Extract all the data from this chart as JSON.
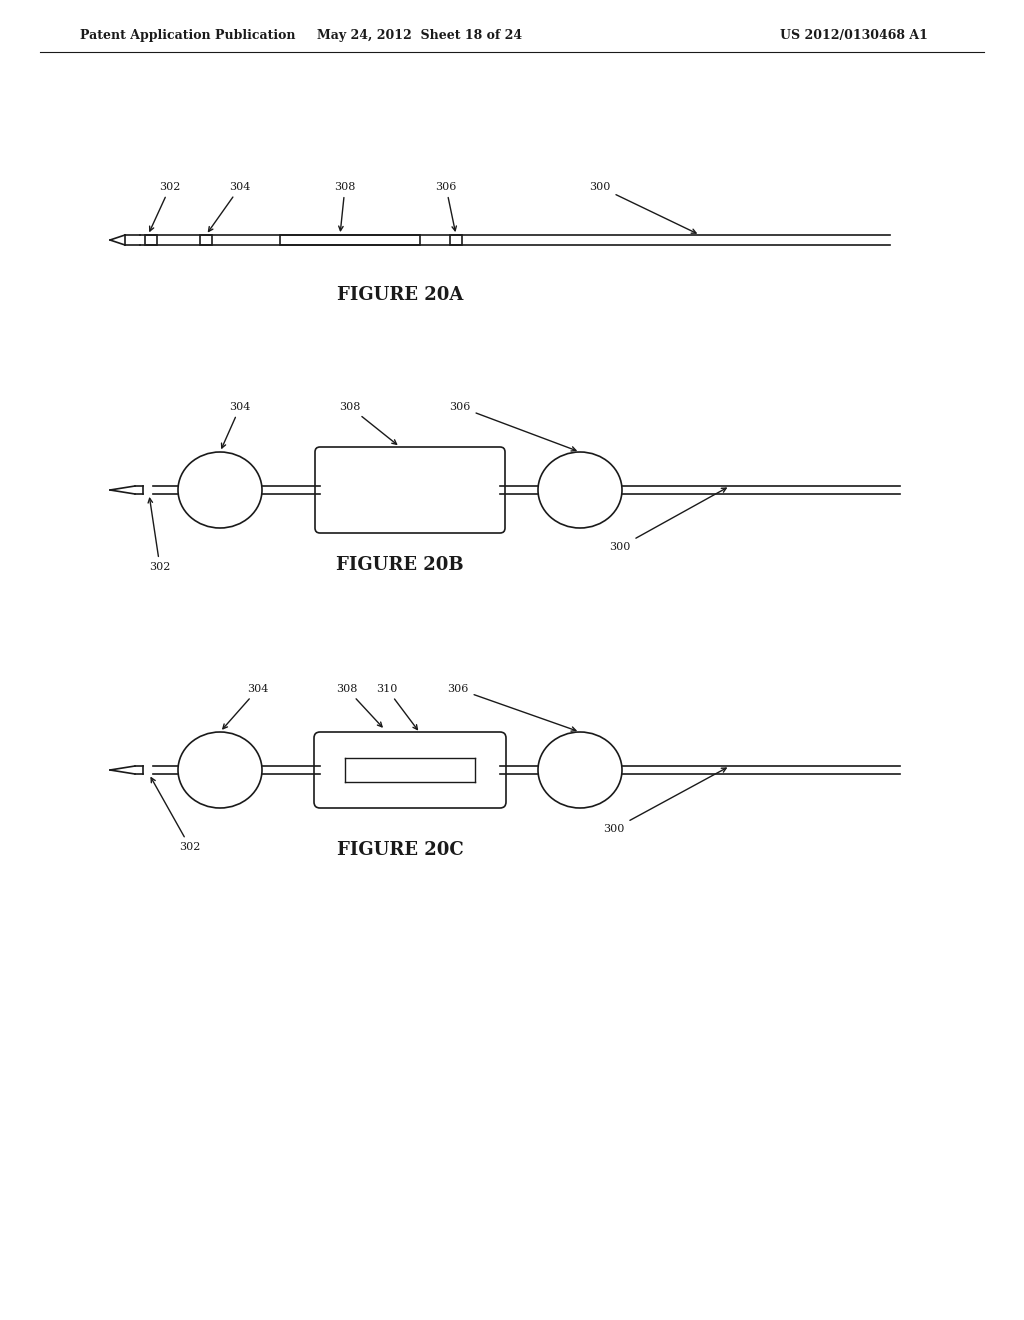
{
  "bg_color": "#ffffff",
  "header_left": "Patent Application Publication",
  "header_mid": "May 24, 2012  Sheet 18 of 24",
  "header_right": "US 2012/0130468 A1",
  "fig20a_label": "FIGURE 20A",
  "fig20b_label": "FIGURE 20B",
  "fig20c_label": "FIGURE 20C",
  "line_color": "#1a1a1a",
  "annotation_fontsize": 8,
  "figure_label_fontsize": 13
}
